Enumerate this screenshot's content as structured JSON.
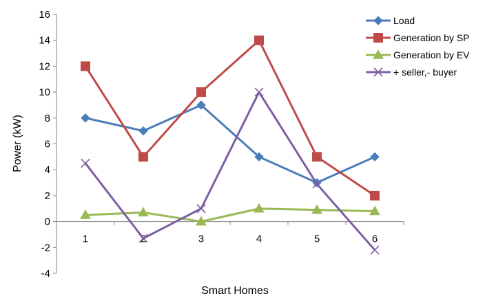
{
  "chart_data": {
    "type": "line",
    "title": "",
    "xlabel": "Smart Homes",
    "ylabel": "Power (kW)",
    "categories": [
      "1",
      "2",
      "3",
      "4",
      "5",
      "6"
    ],
    "ylim": [
      -4,
      16
    ],
    "yticks": [
      -4,
      -2,
      0,
      2,
      4,
      6,
      8,
      10,
      12,
      14,
      16
    ],
    "grid": false,
    "legend_position": "top-right",
    "series": [
      {
        "name": "Load",
        "values": [
          8,
          7,
          9,
          5,
          3,
          5
        ],
        "color": "#4A7EBB",
        "marker": "diamond"
      },
      {
        "name": "Generation by SP",
        "values": [
          12,
          5,
          10,
          14,
          5,
          2
        ],
        "color": "#BE4B48",
        "marker": "square"
      },
      {
        "name": "Generation by EV",
        "values": [
          0.5,
          0.7,
          0,
          1,
          0.9,
          0.8
        ],
        "color": "#98B954",
        "marker": "triangle"
      },
      {
        "name": "+ seller,- buyer",
        "values": [
          4.5,
          -1.3,
          1,
          10,
          2.9,
          -2.2
        ],
        "color": "#7D5FA0",
        "marker": "x"
      }
    ]
  }
}
